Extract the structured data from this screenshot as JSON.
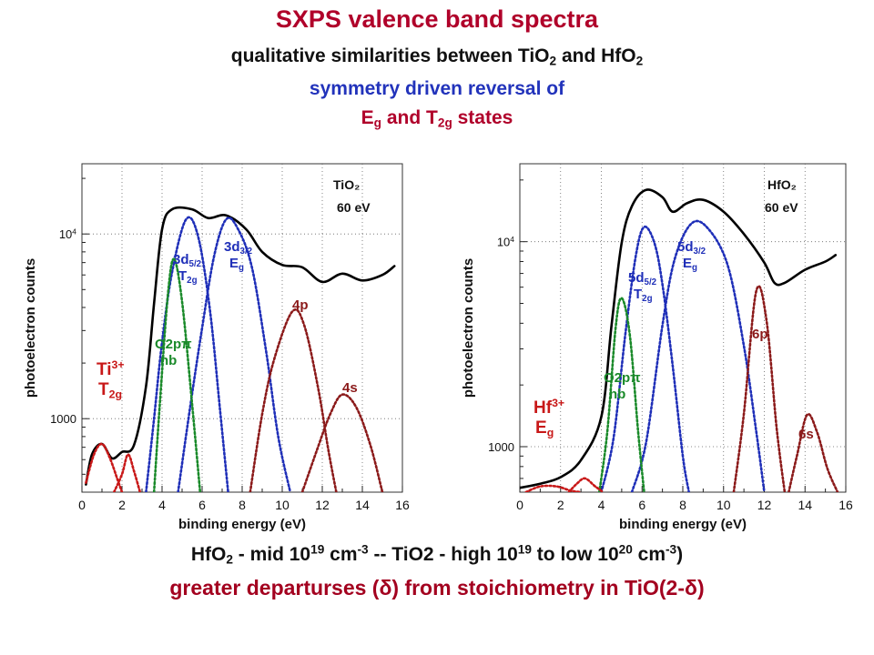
{
  "title": {
    "line1": "SXPS valence band spectra",
    "line2_pre": "qualitative similarities between TiO",
    "line2_sub1": "2",
    "line2_mid": " and HfO",
    "line2_sub2": "2",
    "line3": "symmetry driven reversal of",
    "line4_e": "E",
    "line4_esub": "g",
    "line4_mid": " and T",
    "line4_tsub": "2g",
    "line4_end": " states"
  },
  "footer": {
    "line1_a": "HfO",
    "line1_a_sub": "2",
    "line1_b": " - mid 10",
    "line1_b_sup": "19",
    "line1_c": " cm",
    "line1_c_sup": "-3",
    "line1_d": " -- TiO2 - high 10",
    "line1_d_sup": "19",
    "line1_e": " to low 10",
    "line1_e_sup": "20",
    "line1_f": " cm",
    "line1_f_sup": "-3",
    "line1_g": ")",
    "line2": "greater departurses (δ) from stoichiometry in TiO(2-δ)"
  },
  "colors": {
    "total": "#000000",
    "blue": "#1f2fb8",
    "green": "#1a8a2a",
    "darkred": "#8b1a1a",
    "red": "#c81818",
    "title_red": "#b0002a",
    "title_blue": "#2233bb"
  },
  "chart_data": [
    {
      "type": "line",
      "panel": "TiO2",
      "title": "TiO2 60 eV",
      "label_material": "TiO",
      "label_material_sub": "2",
      "label_energy": "60 eV",
      "xlabel": "binding energy (eV)",
      "ylabel": "photoelectron counts",
      "xlim": [
        0,
        16
      ],
      "xticks": [
        "0",
        "2",
        "4",
        "6",
        "8",
        "10",
        "12",
        "14",
        "16"
      ],
      "yscale": "log",
      "yticks": [
        {
          "value": 1000,
          "label": "1000"
        },
        {
          "value": 10000,
          "label": "10",
          "sup": "4"
        }
      ],
      "grid": true,
      "annotations": [
        {
          "text": "TiO₂",
          "color": "black"
        },
        {
          "text": "60 eV",
          "color": "black"
        },
        {
          "text": "3d5/2",
          "sub_text": "T2g",
          "color": "blue"
        },
        {
          "text": "3d3/2",
          "sub_text": "Eg",
          "color": "blue"
        },
        {
          "text": "O2pπ",
          "sub_text": "nb",
          "color": "green"
        },
        {
          "text": "4p",
          "color": "darkred"
        },
        {
          "text": "4s",
          "color": "darkred"
        },
        {
          "text": "Ti3+",
          "sub_text": "T2g",
          "color": "red"
        }
      ],
      "series": [
        {
          "name": "total",
          "style": "solid",
          "points": [
            [
              0.2,
              440
            ],
            [
              0.5,
              640
            ],
            [
              1.0,
              730
            ],
            [
              1.5,
              610
            ],
            [
              2.0,
              660
            ],
            [
              2.6,
              720
            ],
            [
              3.2,
              1500
            ],
            [
              3.6,
              4200
            ],
            [
              4.0,
              10600
            ],
            [
              4.5,
              13600
            ],
            [
              5.5,
              13600
            ],
            [
              6.3,
              12200
            ],
            [
              7.2,
              12600
            ],
            [
              8.2,
              10600
            ],
            [
              9.0,
              8000
            ],
            [
              10.0,
              6800
            ],
            [
              11.0,
              6600
            ],
            [
              12.0,
              5500
            ],
            [
              13.0,
              6100
            ],
            [
              14.0,
              5600
            ],
            [
              15.0,
              6000
            ],
            [
              15.6,
              6700
            ]
          ]
        },
        {
          "name": "3d5/2 T2g",
          "style": "dotted",
          "points": [
            [
              3.2,
              400
            ],
            [
              3.6,
              1000
            ],
            [
              4.0,
              2600
            ],
            [
              4.5,
              6200
            ],
            [
              5.2,
              12000
            ],
            [
              5.8,
              9700
            ],
            [
              6.4,
              3800
            ],
            [
              6.9,
              1100
            ],
            [
              7.3,
              400
            ]
          ]
        },
        {
          "name": "3d3/2 Eg",
          "style": "dotted",
          "points": [
            [
              4.8,
              400
            ],
            [
              5.4,
              1150
            ],
            [
              6.0,
              3100
            ],
            [
              6.6,
              7600
            ],
            [
              7.2,
              12000
            ],
            [
              7.8,
              10600
            ],
            [
              8.5,
              6500
            ],
            [
              9.2,
              2300
            ],
            [
              9.8,
              800
            ],
            [
              10.4,
              400
            ]
          ]
        },
        {
          "name": "O2pπ nb",
          "style": "dotted",
          "points": [
            [
              3.6,
              400
            ],
            [
              3.9,
              1250
            ],
            [
              4.3,
              4800
            ],
            [
              4.6,
              7300
            ],
            [
              5.0,
              4300
            ],
            [
              5.5,
              1200
            ],
            [
              5.9,
              400
            ]
          ]
        },
        {
          "name": "4p",
          "style": "dotted",
          "points": [
            [
              8.4,
              400
            ],
            [
              9.0,
              1060
            ],
            [
              9.6,
              2100
            ],
            [
              10.5,
              3800
            ],
            [
              11.1,
              3200
            ],
            [
              11.8,
              1450
            ],
            [
              12.3,
              680
            ],
            [
              12.7,
              400
            ]
          ]
        },
        {
          "name": "4s",
          "style": "dotted",
          "points": [
            [
              11.0,
              400
            ],
            [
              11.7,
              660
            ],
            [
              12.4,
              1060
            ],
            [
              13.0,
              1350
            ],
            [
              13.7,
              1150
            ],
            [
              14.4,
              720
            ],
            [
              15.0,
              400
            ]
          ]
        },
        {
          "name": "Ti3+ T2g (low)",
          "style": "dotted",
          "points": [
            [
              0.2,
              450
            ],
            [
              0.6,
              640
            ],
            [
              1.0,
              730
            ],
            [
              1.4,
              610
            ],
            [
              1.8,
              460
            ],
            [
              2.0,
              400
            ]
          ]
        },
        {
          "name": "Ti3+ T2g (high)",
          "style": "dotted",
          "points": [
            [
              1.6,
              400
            ],
            [
              2.0,
              500
            ],
            [
              2.3,
              640
            ],
            [
              2.6,
              520
            ],
            [
              2.9,
              400
            ]
          ]
        }
      ]
    },
    {
      "type": "line",
      "panel": "HfO2",
      "title": "HfO2 60 eV",
      "label_material": "HfO",
      "label_material_sub": "2",
      "label_energy": "60 eV",
      "xlabel": "binding energy (eV)",
      "ylabel": "photoelectron counts",
      "xlim": [
        0,
        16
      ],
      "xticks": [
        "0",
        "2",
        "4",
        "6",
        "8",
        "10",
        "12",
        "14",
        "16"
      ],
      "yscale": "log",
      "yticks": [
        {
          "value": 1000,
          "label": "1000"
        },
        {
          "value": 10000,
          "label": "10",
          "sup": "4"
        }
      ],
      "grid": true,
      "annotations": [
        {
          "text": "HfO₂",
          "color": "black"
        },
        {
          "text": "60 eV",
          "color": "black"
        },
        {
          "text": "5d5/2",
          "sub_text": "T2g",
          "color": "blue"
        },
        {
          "text": "5d3/2",
          "sub_text": "Eg",
          "color": "blue"
        },
        {
          "text": "O2pπ",
          "sub_text": "nb",
          "color": "green"
        },
        {
          "text": "6p",
          "color": "darkred"
        },
        {
          "text": "6s",
          "color": "darkred"
        },
        {
          "text": "Hf3+",
          "sub_text": "Eg",
          "color": "red"
        }
      ],
      "series": [
        {
          "name": "total",
          "style": "solid",
          "points": [
            [
              0.0,
              630
            ],
            [
              1.0,
              660
            ],
            [
              2.0,
              710
            ],
            [
              3.0,
              860
            ],
            [
              4.0,
              1400
            ],
            [
              4.5,
              3900
            ],
            [
              5.0,
              9900
            ],
            [
              5.5,
              14900
            ],
            [
              6.2,
              17900
            ],
            [
              7.0,
              16500
            ],
            [
              7.5,
              14000
            ],
            [
              8.2,
              15400
            ],
            [
              9.0,
              16000
            ],
            [
              10.0,
              14000
            ],
            [
              11.0,
              10900
            ],
            [
              12.0,
              7900
            ],
            [
              12.5,
              6300
            ],
            [
              13.0,
              6300
            ],
            [
              14.0,
              7300
            ],
            [
              15.0,
              8000
            ],
            [
              15.5,
              8600
            ]
          ]
        },
        {
          "name": "5d5/2 T2g",
          "style": "dotted",
          "points": [
            [
              4.0,
              600
            ],
            [
              4.6,
              1100
            ],
            [
              5.2,
              3700
            ],
            [
              5.7,
              8600
            ],
            [
              6.1,
              11800
            ],
            [
              6.6,
              9900
            ],
            [
              7.0,
              6200
            ],
            [
              7.5,
              2500
            ],
            [
              8.0,
              900
            ],
            [
              8.3,
              600
            ]
          ]
        },
        {
          "name": "5d3/2 Eg",
          "style": "dotted",
          "points": [
            [
              5.5,
              600
            ],
            [
              6.2,
              1050
            ],
            [
              7.0,
              3900
            ],
            [
              7.6,
              8200
            ],
            [
              8.4,
              12200
            ],
            [
              9.2,
              11700
            ],
            [
              10.2,
              7700
            ],
            [
              11.0,
              3100
            ],
            [
              11.6,
              1200
            ],
            [
              12.0,
              600
            ]
          ]
        },
        {
          "name": "O2pπ nb",
          "style": "dotted",
          "points": [
            [
              3.9,
              600
            ],
            [
              4.3,
              1200
            ],
            [
              4.7,
              3800
            ],
            [
              5.0,
              5300
            ],
            [
              5.4,
              3500
            ],
            [
              5.8,
              1200
            ],
            [
              6.1,
              600
            ]
          ]
        },
        {
          "name": "6p",
          "style": "dotted",
          "points": [
            [
              10.5,
              600
            ],
            [
              11.0,
              1450
            ],
            [
              11.6,
              5700
            ],
            [
              12.1,
              4200
            ],
            [
              12.6,
              1250
            ],
            [
              13.0,
              600
            ]
          ]
        },
        {
          "name": "6s",
          "style": "dotted",
          "points": [
            [
              13.2,
              600
            ],
            [
              13.6,
              900
            ],
            [
              14.1,
              1430
            ],
            [
              14.6,
              1170
            ],
            [
              15.1,
              780
            ],
            [
              15.6,
              600
            ]
          ]
        },
        {
          "name": "Hf3+ Eg (low)",
          "style": "dotted",
          "points": [
            [
              0.3,
              600
            ],
            [
              1.0,
              640
            ],
            [
              1.8,
              640
            ],
            [
              2.5,
              610
            ],
            [
              3.0,
              600
            ]
          ]
        },
        {
          "name": "Hf3+ Eg (high)",
          "style": "dotted",
          "points": [
            [
              2.4,
              600
            ],
            [
              2.8,
              660
            ],
            [
              3.2,
              700
            ],
            [
              3.7,
              640
            ],
            [
              4.1,
              600
            ]
          ]
        }
      ]
    }
  ]
}
